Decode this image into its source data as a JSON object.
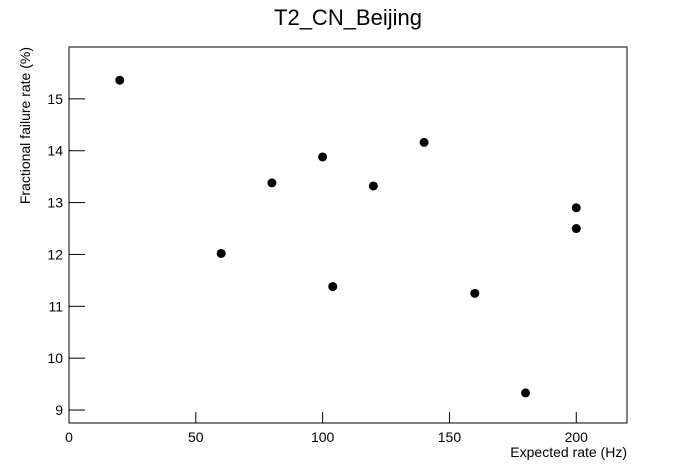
{
  "chart_data": {
    "type": "scatter",
    "title": "T2_CN_Beijing",
    "x_label": "Expected rate (Hz)",
    "y_label": "Fractional failure rate (%)",
    "x": [
      20,
      60,
      80,
      100,
      104,
      120,
      140,
      160,
      180,
      200,
      200
    ],
    "values": [
      15.36,
      12.02,
      13.38,
      13.88,
      11.38,
      13.32,
      14.16,
      11.25,
      9.33,
      12.9,
      12.5
    ],
    "color": "#000000",
    "xlim": [
      0,
      220
    ],
    "xticks": [
      0,
      50,
      100,
      150,
      200
    ],
    "ylim": [
      8.75,
      16
    ],
    "yticks": [
      9,
      10,
      11,
      12,
      13,
      14,
      15
    ]
  }
}
